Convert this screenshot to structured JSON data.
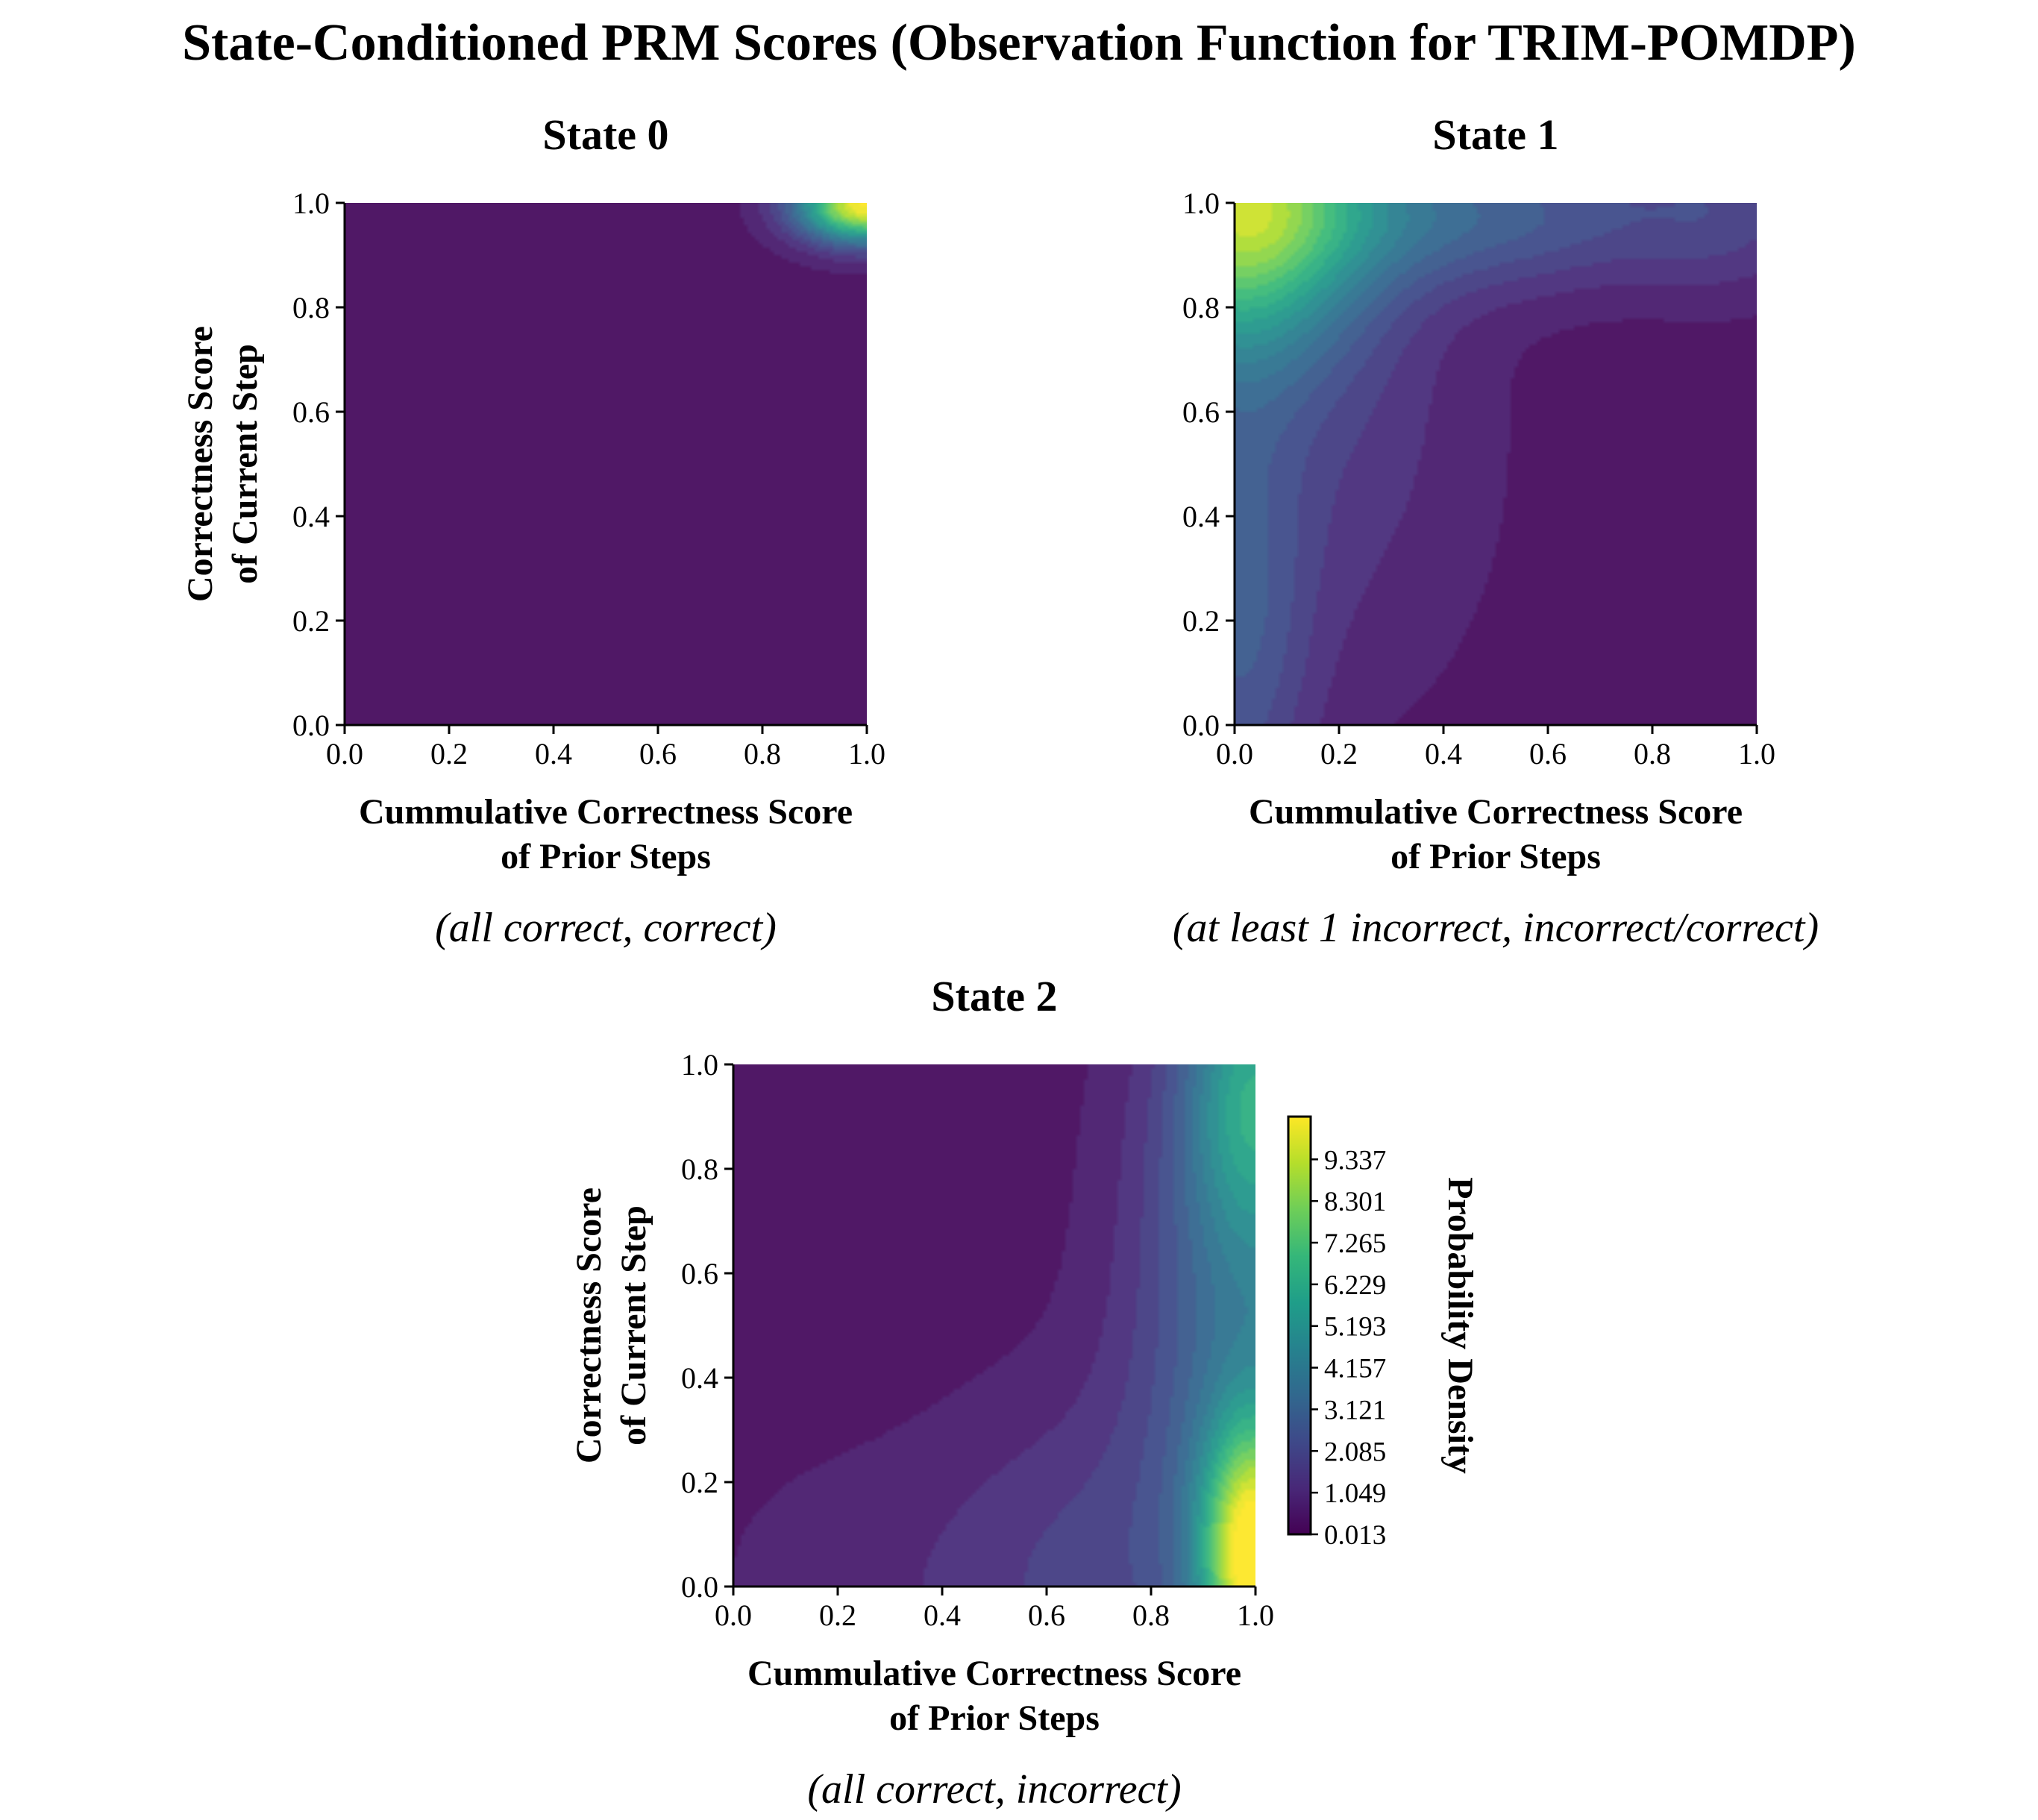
{
  "figure_title": "State-Conditioned PRM Scores (Observation Function for TRIM-POMDP)",
  "chart_data": [
    {
      "type": "heatmap",
      "title": "State 0",
      "subtitle": "(all correct, correct)",
      "xlabel": [
        "Cummulative Correctness Score",
        "of Prior Steps"
      ],
      "ylabel": [
        "Correctness Score",
        "of Current Step"
      ],
      "xlim": [
        0,
        1
      ],
      "ylim": [
        0,
        1
      ],
      "xticks": [
        "0.0",
        "0.2",
        "0.4",
        "0.6",
        "0.8",
        "1.0"
      ],
      "yticks": [
        "0.0",
        "0.2",
        "0.4",
        "0.6",
        "0.8",
        "1.0"
      ],
      "density_peaks": [
        {
          "x": 1.0,
          "y": 1.0,
          "sx": 0.09,
          "sy": 0.05,
          "amp": 10.2
        }
      ]
    },
    {
      "type": "heatmap",
      "title": "State 1",
      "subtitle": "(at least 1 incorrect, incorrect/correct)",
      "xlabel": [
        "Cummulative Correctness Score",
        "of Prior Steps"
      ],
      "ylabel": [],
      "xlim": [
        0,
        1
      ],
      "ylim": [
        0,
        1
      ],
      "xticks": [
        "0.0",
        "0.2",
        "0.4",
        "0.6",
        "0.8",
        "1.0"
      ],
      "yticks": [
        "0.0",
        "0.2",
        "0.4",
        "0.6",
        "0.8",
        "1.0"
      ],
      "density_peaks": [
        {
          "x": 0.0,
          "y": 1.0,
          "sx": 0.17,
          "sy": 0.2,
          "amp": 8.0
        },
        {
          "x": 0.45,
          "y": 0.98,
          "sx": 0.32,
          "sy": 0.1,
          "amp": 2.5
        },
        {
          "x": 0.0,
          "y": 0.2,
          "sx": 0.1,
          "sy": 0.35,
          "amp": 2.2
        },
        {
          "x": 0.95,
          "y": 1.0,
          "sx": 0.12,
          "sy": 0.12,
          "amp": 1.0
        },
        {
          "x": 0.2,
          "y": 0.55,
          "sx": 0.2,
          "sy": 0.35,
          "amp": 1.0
        }
      ]
    },
    {
      "type": "heatmap",
      "title": "State 2",
      "subtitle": "(all correct, incorrect)",
      "xlabel": [
        "Cummulative Correctness Score",
        "of Prior Steps"
      ],
      "ylabel": [
        "Correctness Score",
        "of Current Step"
      ],
      "xlim": [
        0,
        1
      ],
      "ylim": [
        0,
        1
      ],
      "xticks": [
        "0.0",
        "0.2",
        "0.4",
        "0.6",
        "0.8",
        "1.0"
      ],
      "yticks": [
        "0.0",
        "0.2",
        "0.4",
        "0.6",
        "0.8",
        "1.0"
      ],
      "density_peaks": [
        {
          "x": 1.0,
          "y": 0.05,
          "sx": 0.07,
          "sy": 0.18,
          "amp": 9.0
        },
        {
          "x": 1.0,
          "y": 0.95,
          "sx": 0.09,
          "sy": 0.2,
          "amp": 4.0
        },
        {
          "x": 1.0,
          "y": 0.5,
          "sx": 0.16,
          "sy": 0.5,
          "amp": 3.2
        },
        {
          "x": 0.65,
          "y": 0.0,
          "sx": 0.2,
          "sy": 0.25,
          "amp": 1.3
        },
        {
          "x": 0.2,
          "y": 0.0,
          "sx": 0.2,
          "sy": 0.2,
          "amp": 0.45
        }
      ]
    }
  ],
  "colorbar": {
    "label": "Probability Density",
    "ticks": [
      "0.013",
      "1.049",
      "2.085",
      "3.121",
      "4.157",
      "5.193",
      "6.229",
      "7.265",
      "8.301",
      "9.337"
    ],
    "tick_values": [
      0.013,
      1.049,
      2.085,
      3.121,
      4.157,
      5.193,
      6.229,
      7.265,
      8.301,
      9.337
    ],
    "range": [
      0.013,
      10.4
    ],
    "colormap": [
      "#440154",
      "#482878",
      "#3e4989",
      "#31688e",
      "#26828e",
      "#1f9e89",
      "#35b779",
      "#6ece58",
      "#b5de2b",
      "#fde725"
    ]
  }
}
